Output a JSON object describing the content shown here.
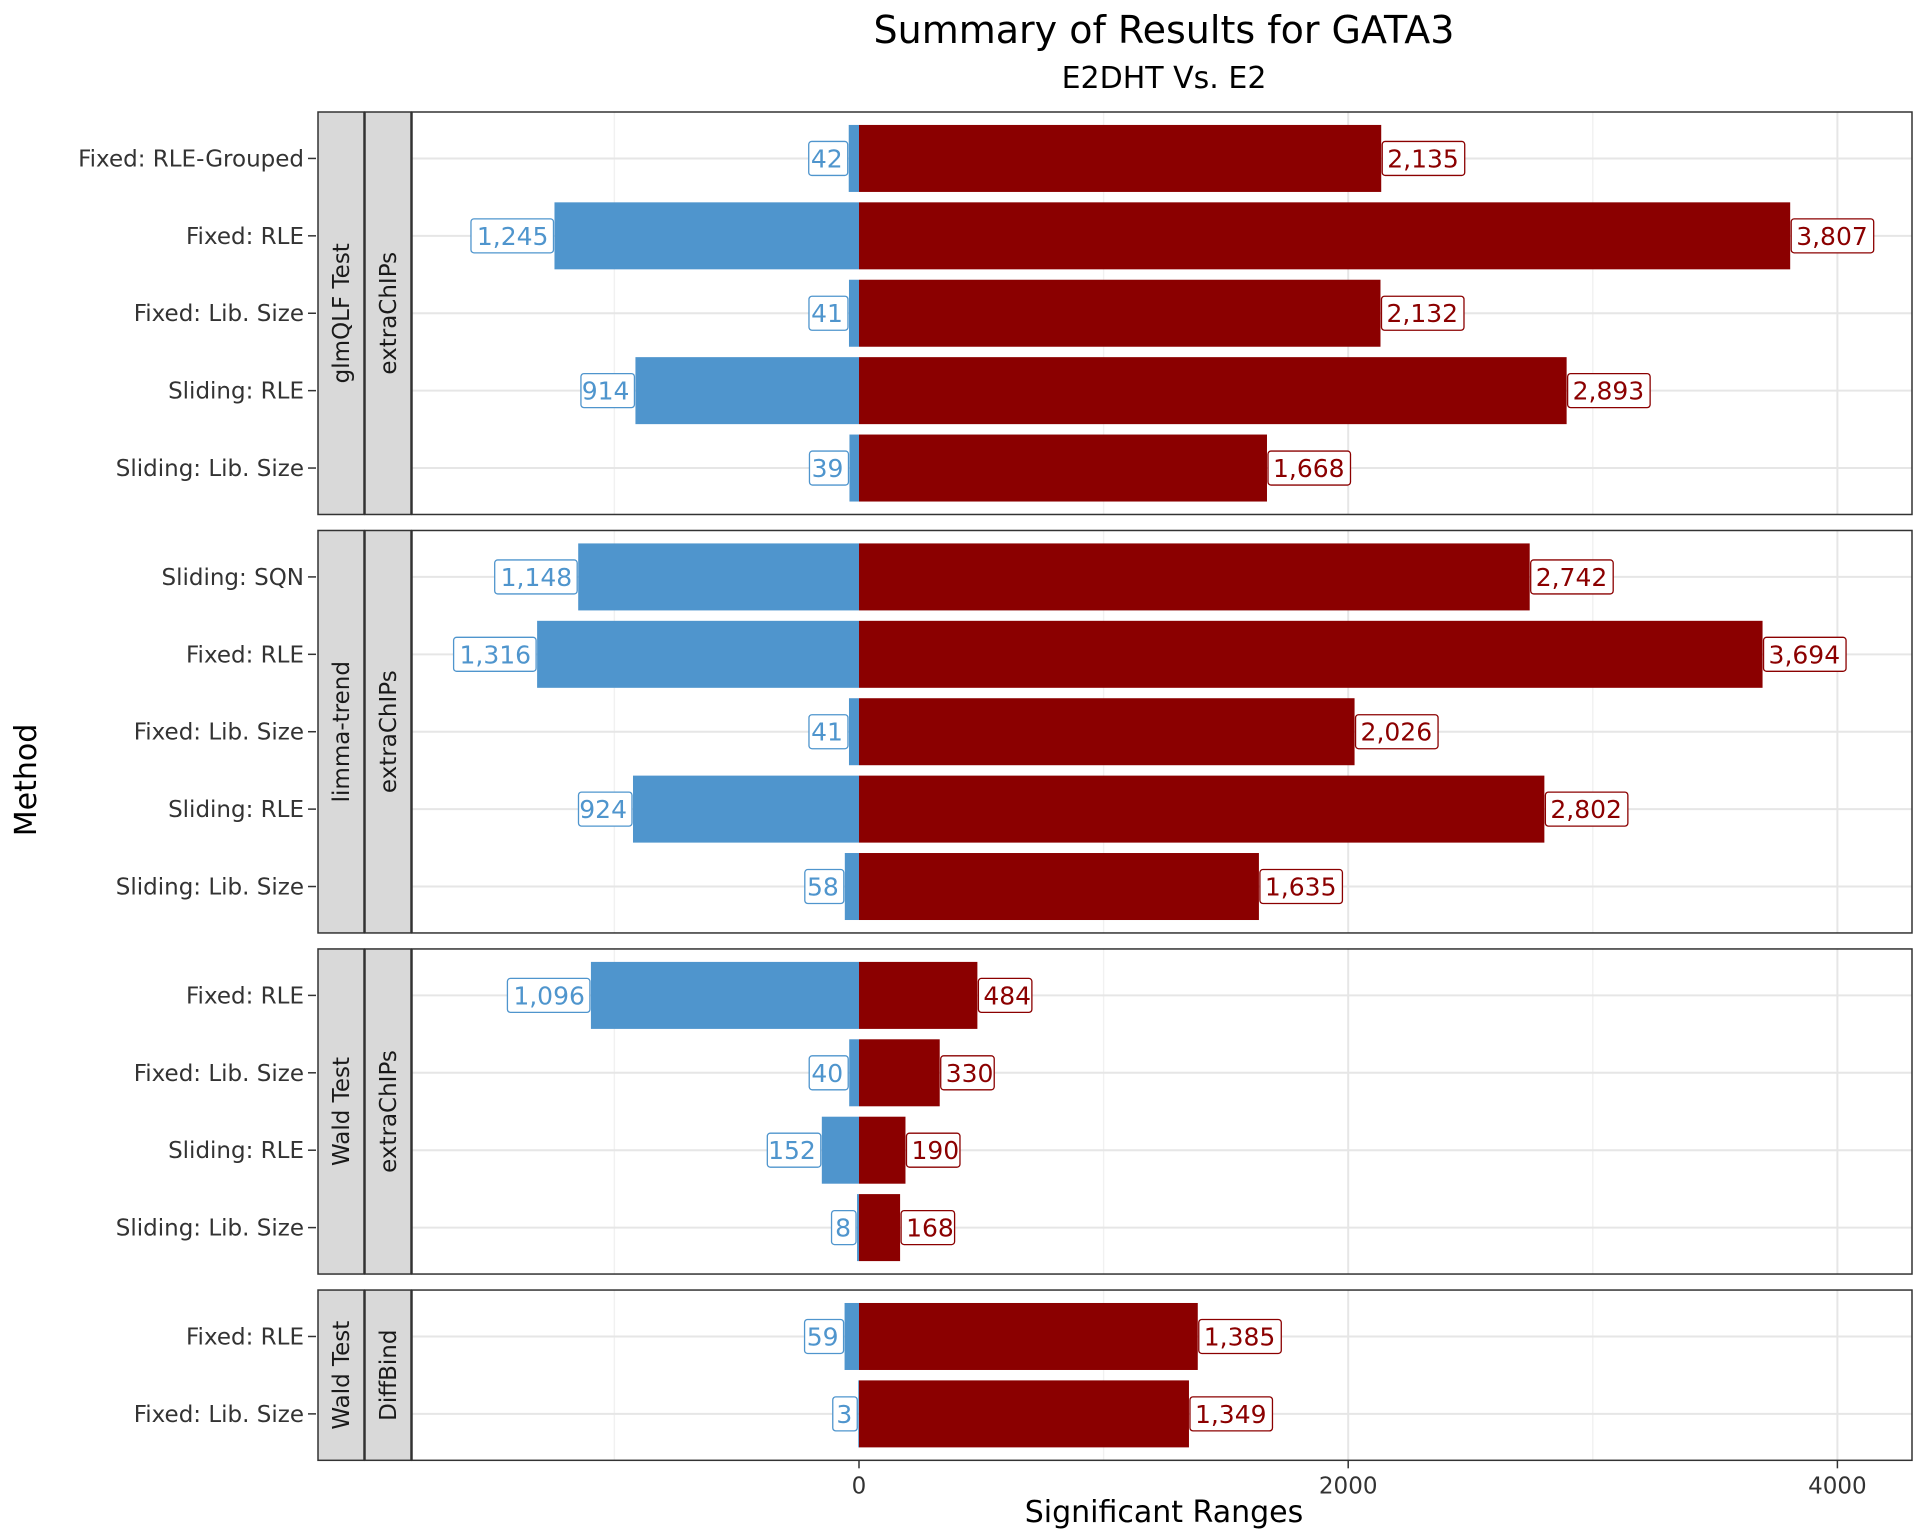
{
  "chart_data": {
    "type": "bar",
    "orientation": "horizontal",
    "title": "Summary of Results for GATA3",
    "subtitle": "E2DHT Vs. E2",
    "xlabel": "Significant Ranges",
    "ylabel": "Method",
    "xticks": [
      0,
      2000,
      4000
    ],
    "xtick_labels": [
      "0",
      "2000",
      "4000"
    ],
    "xlim": [
      -2200,
      4300
    ],
    "grid": true,
    "colors": {
      "down": "#4f95cd",
      "up": "#8b0000"
    },
    "panels": [
      {
        "test": "glmQLF Test",
        "package": "extraChIPs",
        "rows": [
          {
            "method": "Fixed: RLE-Grouped",
            "down": 42,
            "down_label": "42",
            "up": 2135,
            "up_label": "2,135"
          },
          {
            "method": "Fixed: RLE",
            "down": 1245,
            "down_label": "1,245",
            "up": 3807,
            "up_label": "3,807"
          },
          {
            "method": "Fixed: Lib. Size",
            "down": 41,
            "down_label": "41",
            "up": 2132,
            "up_label": "2,132"
          },
          {
            "method": "Sliding: RLE",
            "down": 914,
            "down_label": "914",
            "up": 2893,
            "up_label": "2,893"
          },
          {
            "method": "Sliding: Lib. Size",
            "down": 39,
            "down_label": "39",
            "up": 1668,
            "up_label": "1,668"
          }
        ]
      },
      {
        "test": "limma-trend",
        "package": "extraChIPs",
        "rows": [
          {
            "method": "Sliding: SQN",
            "down": 1148,
            "down_label": "1,148",
            "up": 2742,
            "up_label": "2,742"
          },
          {
            "method": "Fixed: RLE",
            "down": 1316,
            "down_label": "1,316",
            "up": 3694,
            "up_label": "3,694"
          },
          {
            "method": "Fixed: Lib. Size",
            "down": 41,
            "down_label": "41",
            "up": 2026,
            "up_label": "2,026"
          },
          {
            "method": "Sliding: RLE",
            "down": 924,
            "down_label": "924",
            "up": 2802,
            "up_label": "2,802"
          },
          {
            "method": "Sliding: Lib. Size",
            "down": 58,
            "down_label": "58",
            "up": 1635,
            "up_label": "1,635"
          }
        ]
      },
      {
        "test": "Wald Test",
        "package": "extraChIPs",
        "rows": [
          {
            "method": "Fixed: RLE",
            "down": 1096,
            "down_label": "1,096",
            "up": 484,
            "up_label": "484"
          },
          {
            "method": "Fixed: Lib. Size",
            "down": 40,
            "down_label": "40",
            "up": 330,
            "up_label": "330"
          },
          {
            "method": "Sliding: RLE",
            "down": 152,
            "down_label": "152",
            "up": 190,
            "up_label": "190"
          },
          {
            "method": "Sliding: Lib. Size",
            "down": 8,
            "down_label": "8",
            "up": 168,
            "up_label": "168"
          }
        ]
      },
      {
        "test": "Wald Test",
        "package": "DiffBind",
        "rows": [
          {
            "method": "Fixed: RLE",
            "down": 59,
            "down_label": "59",
            "up": 1385,
            "up_label": "1,385"
          },
          {
            "method": "Fixed: Lib. Size",
            "down": 3,
            "down_label": "3",
            "up": 1349,
            "up_label": "1,349"
          }
        ]
      }
    ]
  }
}
